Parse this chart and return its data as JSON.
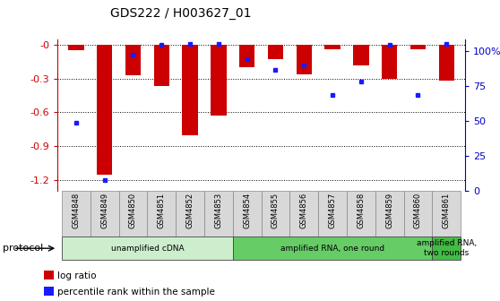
{
  "title": "GDS222 / H003627_01",
  "samples": [
    "GSM4848",
    "GSM4849",
    "GSM4850",
    "GSM4851",
    "GSM4852",
    "GSM4853",
    "GSM4854",
    "GSM4855",
    "GSM4856",
    "GSM4857",
    "GSM4858",
    "GSM4859",
    "GSM4860",
    "GSM4861"
  ],
  "log_ratio": [
    -0.05,
    -1.15,
    -0.27,
    -0.37,
    -0.8,
    -0.63,
    -0.2,
    -0.13,
    -0.26,
    -0.04,
    -0.18,
    -0.3,
    -0.04,
    -0.32
  ],
  "percentile": [
    0.45,
    0.07,
    0.9,
    0.96,
    0.97,
    0.97,
    0.87,
    0.8,
    0.83,
    0.63,
    0.72,
    0.96,
    0.63,
    0.97
  ],
  "ylim_left": [
    -1.3,
    0.05
  ],
  "yticks_left": [
    -1.2,
    -0.9,
    -0.6,
    -0.3,
    0.0
  ],
  "ytick_labels_left": [
    "-1.2",
    "-0.9",
    "-0.6",
    "-0.3",
    "-0"
  ],
  "ylim_right": [
    0,
    108.33
  ],
  "yticks_right": [
    0,
    25,
    50,
    75,
    100
  ],
  "ytick_labels_right": [
    "0",
    "25",
    "50",
    "75",
    "100%"
  ],
  "bar_color": "#cc0000",
  "dot_color": "#1a1aff",
  "bar_width": 0.55,
  "protocol_groups": [
    {
      "label": "unamplified cDNA",
      "start": 0,
      "end": 5,
      "color": "#cceecc"
    },
    {
      "label": "amplified RNA, one round",
      "start": 6,
      "end": 12,
      "color": "#66cc66"
    },
    {
      "label": "amplified RNA,\ntwo rounds",
      "start": 13,
      "end": 13,
      "color": "#44bb44"
    }
  ],
  "protocol_label": "protocol",
  "legend_items": [
    {
      "color": "#cc0000",
      "label": "log ratio"
    },
    {
      "color": "#1a1aff",
      "label": "percentile rank within the sample"
    }
  ],
  "axis_color_left": "#cc0000",
  "axis_color_right": "#0000cc",
  "tick_label_color_left": "#cc0000",
  "tick_label_color_right": "#0000cc"
}
